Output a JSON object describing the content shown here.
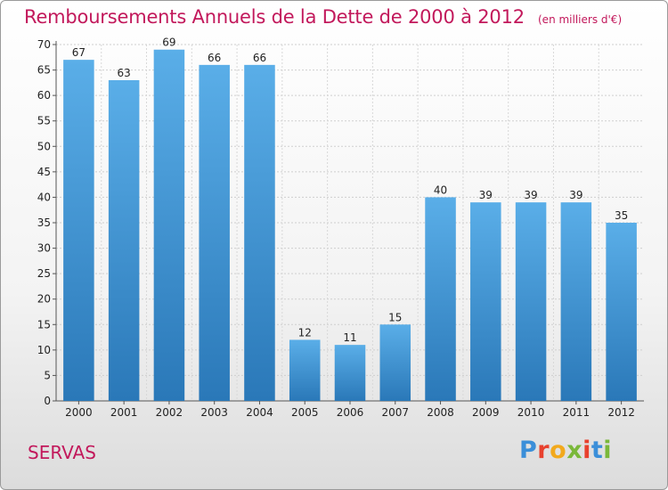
{
  "chart_data": {
    "type": "bar",
    "title": "Remboursements Annuels de la Dette de 2000 à 2012",
    "subtitle": "(en milliers d'€)",
    "categories": [
      "2000",
      "2001",
      "2002",
      "2003",
      "2004",
      "2005",
      "2006",
      "2007",
      "2008",
      "2009",
      "2010",
      "2011",
      "2012"
    ],
    "values": [
      67,
      63,
      69,
      66,
      66,
      12,
      11,
      15,
      40,
      39,
      39,
      39,
      35
    ],
    "ylim": [
      0,
      70
    ],
    "yticks": [
      0,
      5,
      10,
      15,
      20,
      25,
      30,
      35,
      40,
      45,
      50,
      55,
      60,
      65,
      70
    ],
    "grid": true,
    "bar_color_top": "#5aaee8",
    "bar_color_bottom": "#2a78b8"
  },
  "commune": "SERVAS",
  "logo": {
    "text": "Proxiti",
    "letter_colors": [
      "#3b8fd9",
      "#e8412e",
      "#f2a91d",
      "#7ab83a",
      "#e8412e",
      "#3b8fd9",
      "#7ab83a"
    ]
  }
}
